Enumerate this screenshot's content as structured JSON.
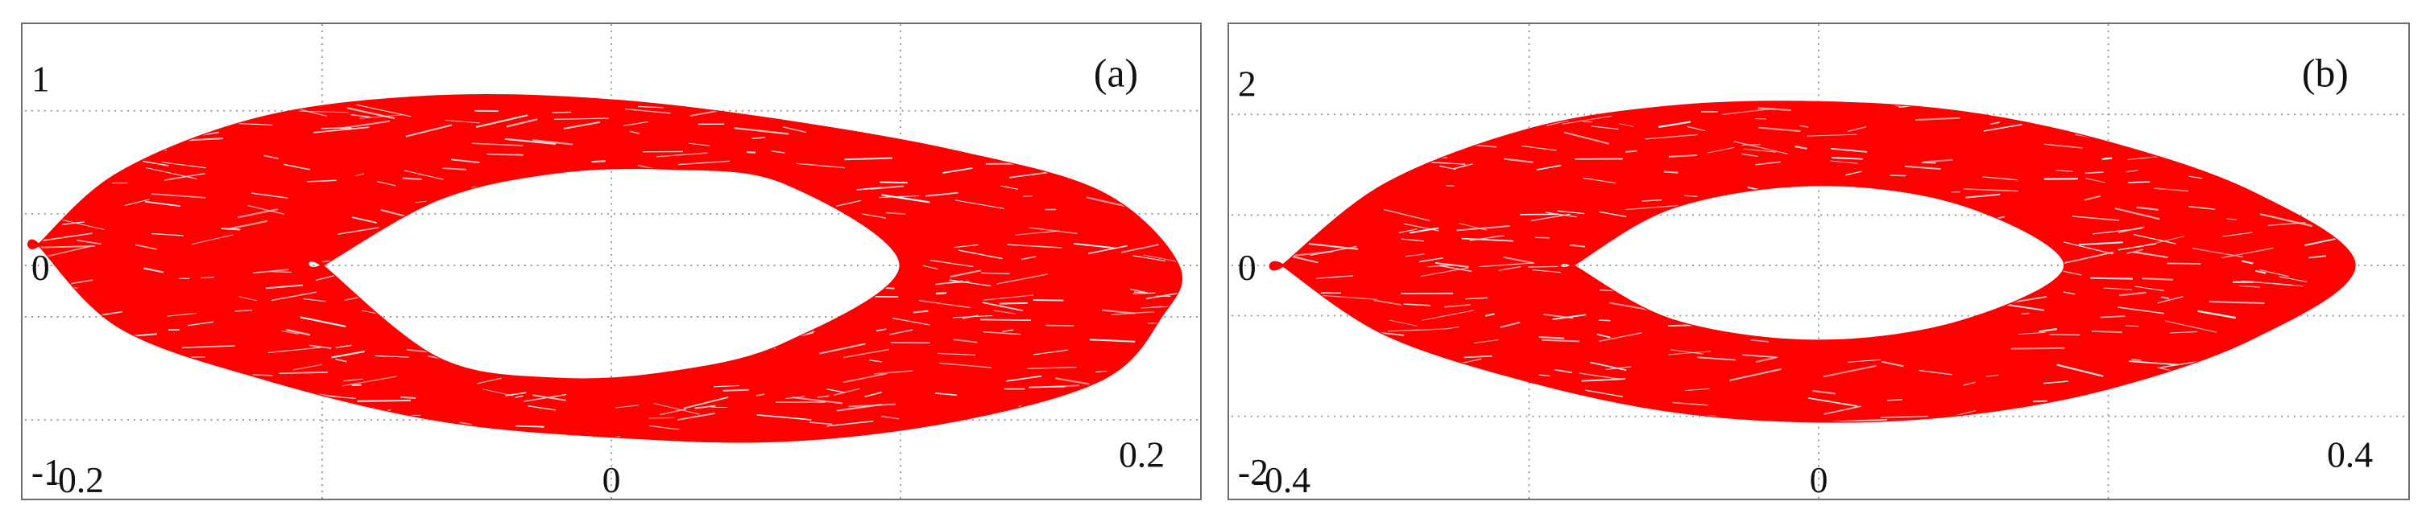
{
  "chart_data": [
    {
      "type": "line",
      "panel_label": "(a)",
      "xlim": [
        -0.2,
        0.2
      ],
      "ylim": [
        -1,
        1
      ],
      "x_ticks": [
        -0.2,
        0,
        0.2
      ],
      "y_ticks": [
        1,
        0,
        -1
      ],
      "x_tick_labels": [
        "-0.2",
        "0",
        "0.2"
      ],
      "y_tick_labels": [
        "1",
        "0",
        "-1"
      ],
      "grid": true,
      "grid_style": "dotted",
      "line_color": "#ff0000",
      "description_of_series": "chaotic attractor band (phase portrait)",
      "outer_boundary": {
        "x": [
          -0.198,
          -0.17,
          -0.12,
          -0.06,
          0.0,
          0.06,
          0.12,
          0.17,
          0.196,
          0.19,
          0.17,
          0.12,
          0.06,
          0.0,
          -0.06,
          -0.12,
          -0.17,
          -0.198
        ],
        "y": [
          0.1,
          0.45,
          0.72,
          0.82,
          0.8,
          0.7,
          0.55,
          0.35,
          0.0,
          -0.25,
          -0.55,
          -0.75,
          -0.85,
          -0.83,
          -0.75,
          -0.55,
          -0.3,
          0.1
        ]
      },
      "inner_boundary": {
        "x": [
          -0.1,
          -0.06,
          -0.02,
          0.02,
          0.06,
          0.1,
          0.06,
          0.02,
          -0.02,
          -0.06,
          -0.1
        ],
        "y": [
          0.0,
          0.32,
          0.45,
          0.47,
          0.4,
          0.0,
          -0.38,
          -0.52,
          -0.55,
          -0.45,
          0.0
        ]
      }
    },
    {
      "type": "line",
      "panel_label": "(b)",
      "xlim": [
        -0.4,
        0.4
      ],
      "ylim": [
        -2,
        2
      ],
      "x_ticks": [
        -0.4,
        0,
        0.4
      ],
      "y_ticks": [
        2,
        0,
        -2
      ],
      "x_tick_labels": [
        "-0.4",
        "0",
        "0.4"
      ],
      "y_tick_labels": [
        "2",
        "0",
        "-2"
      ],
      "grid": true,
      "grid_style": "dotted",
      "line_color": "#ff0000",
      "description_of_series": "chaotic attractor band (phase portrait)",
      "outer_boundary": {
        "x": [
          -0.37,
          -0.3,
          -0.2,
          -0.1,
          0.0,
          0.1,
          0.2,
          0.3,
          0.37,
          0.3,
          0.2,
          0.1,
          0.0,
          -0.1,
          -0.2,
          -0.3,
          -0.37
        ],
        "y": [
          0.0,
          0.8,
          1.35,
          1.58,
          1.62,
          1.52,
          1.22,
          0.72,
          0.0,
          -0.72,
          -1.22,
          -1.48,
          -1.55,
          -1.45,
          -1.15,
          -0.68,
          0.0
        ]
      },
      "inner_boundary": {
        "x": [
          -0.17,
          -0.1,
          0.0,
          0.1,
          0.17,
          0.1,
          0.0,
          -0.1,
          -0.17
        ],
        "y": [
          0.0,
          0.58,
          0.8,
          0.6,
          0.0,
          -0.55,
          -0.75,
          -0.55,
          0.0
        ]
      }
    }
  ]
}
